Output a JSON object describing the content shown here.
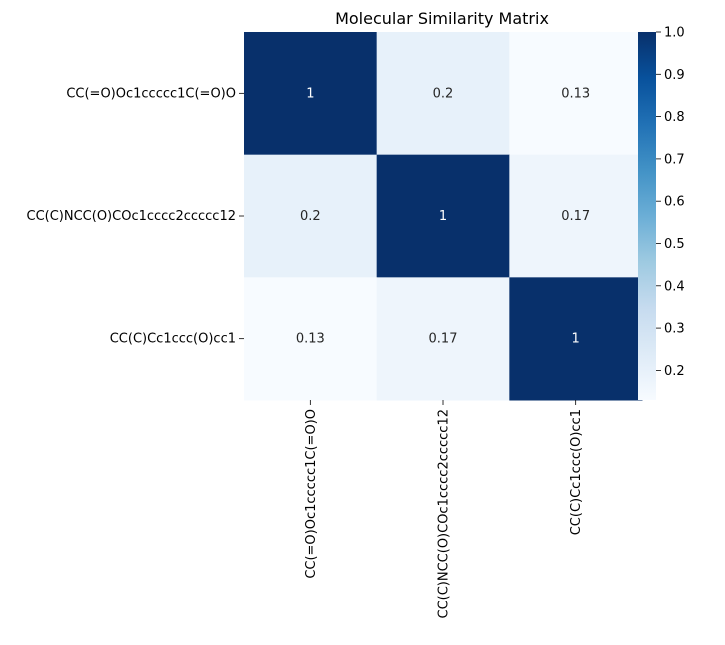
{
  "chart_data": {
    "type": "heatmap",
    "title": "Molecular Similarity Matrix",
    "rows": [
      "CC(=O)Oc1ccccc1C(=O)O",
      "CC(C)NCC(O)COc1cccc2ccccc12",
      "CC(C)Cc1ccc(O)cc1"
    ],
    "columns": [
      "CC(=O)Oc1ccccc1C(=O)O",
      "CC(C)NCC(O)COc1cccc2ccccc12",
      "CC(C)Cc1ccc(O)cc1"
    ],
    "values": [
      [
        1,
        0.2,
        0.13
      ],
      [
        0.2,
        1,
        0.17
      ],
      [
        0.13,
        0.17,
        1
      ]
    ],
    "annotations": [
      [
        "1",
        "0.2",
        "0.13"
      ],
      [
        "0.2",
        "1",
        "0.17"
      ],
      [
        "0.13",
        "0.17",
        "1"
      ]
    ],
    "colormap": "Blues",
    "colors": {
      "low": "#f7fbff",
      "high": "#08306b",
      "annot_dark": "#262626",
      "annot_light": "#ffffff"
    },
    "colorbar": {
      "range": [
        0.13,
        1.0
      ],
      "ticks": [
        0.2,
        0.3,
        0.4,
        0.5,
        0.6,
        0.7,
        0.8,
        0.9,
        1.0
      ],
      "tick_labels": [
        "0.2",
        "0.3",
        "0.4",
        "0.5",
        "0.6",
        "0.7",
        "0.8",
        "0.9",
        "1.0"
      ]
    }
  }
}
